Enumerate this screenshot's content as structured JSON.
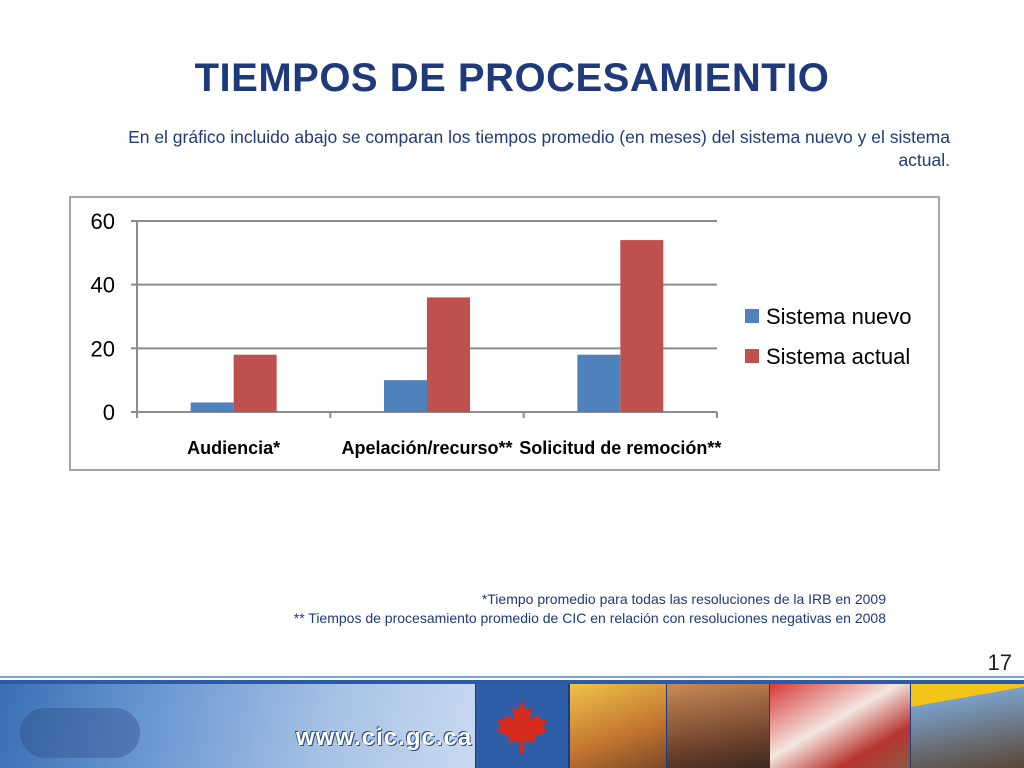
{
  "title": "TIEMPOS DE PROCESAMIENTIO",
  "subtitle": "En el gráfico incluido abajo se comparan los tiempos promedio (en meses) del sistema nuevo y el sistema actual.",
  "chart_data": {
    "type": "bar",
    "categories": [
      "Audiencia*",
      "Apelación/recurso**",
      "Solicitud de remoción**"
    ],
    "series": [
      {
        "name": "Sistema nuevo",
        "values": [
          3,
          10,
          18
        ],
        "color": "#4f81bd"
      },
      {
        "name": "Sistema actual",
        "values": [
          18,
          36,
          54
        ],
        "color": "#c0504d"
      }
    ],
    "ylim": [
      0,
      60
    ],
    "yticks": [
      "0",
      "20",
      "40",
      "60"
    ],
    "ytick_values": [
      0,
      20,
      40,
      60
    ],
    "grid": true,
    "legend_position": "right"
  },
  "footnotes": {
    "note1": "*Tiempo promedio para todas las resoluciones de la IRB en 2009",
    "note2": "** Tiempos de procesamiento promedio de CIC en relación con resoluciones negativas en 2008"
  },
  "page_number": "17",
  "banner": {
    "url": "www.cic.gc.ca",
    "icons": [
      "handshake-photo",
      "maple-leaf-icon",
      "children-photo",
      "woman-photo",
      "family-flag-photo",
      "worker-photo"
    ]
  }
}
